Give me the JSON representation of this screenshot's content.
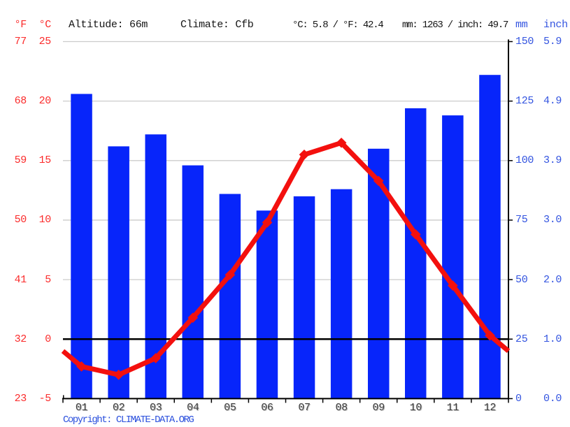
{
  "header": {
    "f_axis_label": "°F",
    "c_axis_label": "°C",
    "altitude": "Altitude: 66m",
    "climate": "Climate: Cfb",
    "temperature_summary": "°C: 5.8 / °F: 42.4",
    "precipitation_summary": "mm: 1263 / inch: 49.7",
    "mm_axis_label": "mm",
    "inch_axis_label": "inch"
  },
  "axes": {
    "f_ticks": [
      "77",
      "68",
      "59",
      "50",
      "41",
      "32",
      "23"
    ],
    "c_ticks": [
      "25",
      "20",
      "15",
      "10",
      "5",
      "0",
      "-5"
    ],
    "mm_ticks": [
      "150",
      "125",
      "100",
      "75",
      "50",
      "25",
      "0"
    ],
    "inch_ticks": [
      "5.9",
      "4.9",
      "3.9",
      "3.0",
      "2.0",
      "1.0",
      "0.0"
    ]
  },
  "chart_data": {
    "type": "bar",
    "subtype": "climograph bar+line combo",
    "categories": [
      "01",
      "02",
      "03",
      "04",
      "05",
      "06",
      "07",
      "08",
      "09",
      "10",
      "11",
      "12"
    ],
    "series": [
      {
        "name": "Precipitation",
        "type": "bar",
        "unit": "mm",
        "axis": "right",
        "values": [
          128,
          106,
          111,
          98,
          86,
          79,
          85,
          88,
          105,
          122,
          119,
          136
        ]
      },
      {
        "name": "Temperature",
        "type": "line",
        "unit": "°C",
        "axis": "left",
        "values": [
          -2.3,
          -3.0,
          -1.6,
          1.8,
          5.4,
          9.8,
          15.5,
          16.5,
          13.3,
          8.8,
          4.5,
          0.3
        ],
        "edge_value_left": -1.0,
        "edge_value_right": -1.0
      }
    ],
    "left_axis": {
      "c_range": [
        -5,
        25
      ],
      "f_range": [
        23,
        77
      ],
      "tick_step_c": 5
    },
    "right_axis": {
      "mm_range": [
        0,
        150
      ],
      "inch_range": [
        0.0,
        5.9
      ],
      "tick_step_mm": 25
    },
    "grid": true,
    "zero_line_c": 0,
    "annual_mean_c": 5.8,
    "annual_total_mm": 1263
  },
  "footer": {
    "copyright": "Copyright: CLIMATE-DATA.ORG"
  },
  "colors": {
    "bar": "#0725fa",
    "line": "#f3100e",
    "red_label": "#fb2b2b",
    "blue_label": "#3354e0",
    "grid": "#cccccc",
    "zero_line": "#000000",
    "month_label": "#3d3d3d"
  }
}
